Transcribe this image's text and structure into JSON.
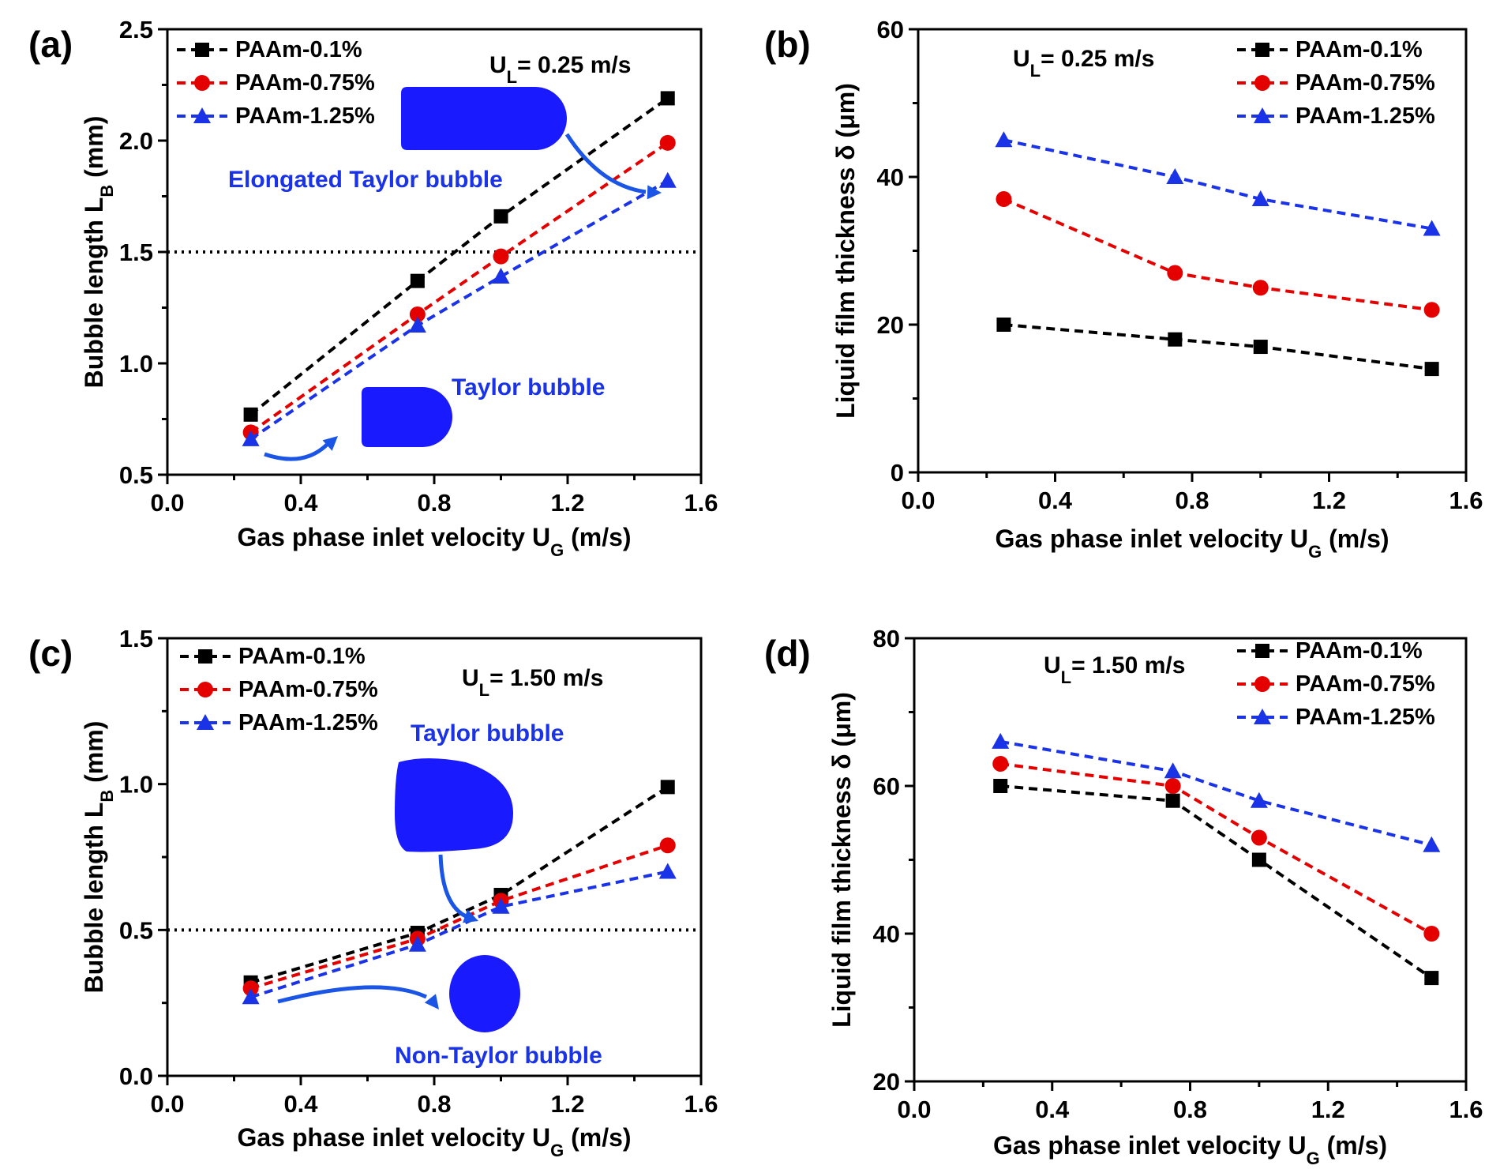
{
  "chart_data": [
    {
      "panel": "(a)",
      "type": "line",
      "condition": {
        "prefix": "U",
        "sub": "L",
        "suffix": "= 0.25 m/s"
      },
      "xlabel": {
        "main": "Gas phase inlet velocity U",
        "sub": "G",
        "suffix": " (m/s)"
      },
      "ylabel": {
        "main": "Bubble length L",
        "sub": "B",
        "suffix": " (mm)"
      },
      "xlim": [
        0.0,
        1.6
      ],
      "ylim": [
        0.5,
        2.5
      ],
      "xticks": [
        "0.0",
        "0.4",
        "0.8",
        "1.2",
        "1.6"
      ],
      "yticks": [
        "0.5",
        "1.0",
        "1.5",
        "2.0",
        "2.5"
      ],
      "x": [
        0.25,
        0.75,
        1.0,
        1.5
      ],
      "series": [
        {
          "name": "PAAm-0.1%",
          "values": [
            0.77,
            1.37,
            1.66,
            2.19
          ],
          "color": "#000000",
          "marker": "square"
        },
        {
          "name": "PAAm-0.75%",
          "values": [
            0.69,
            1.22,
            1.48,
            1.99
          ],
          "color": "#e50000",
          "marker": "circle"
        },
        {
          "name": "PAAm-1.25%",
          "values": [
            0.66,
            1.17,
            1.39,
            1.82
          ],
          "color": "#1a33e6",
          "marker": "triangle"
        }
      ],
      "threshold_line": 1.5,
      "annotations": [
        "Elongated Taylor bubble",
        "Taylor bubble"
      ]
    },
    {
      "panel": "(b)",
      "type": "line",
      "condition": {
        "prefix": "U",
        "sub": "L",
        "suffix": "= 0.25 m/s"
      },
      "xlabel": {
        "main": "Gas phase inlet velocity U",
        "sub": "G",
        "suffix": " (m/s)"
      },
      "ylabel": {
        "main": "Liquid film thickness δ (μm)",
        "sub": "",
        "suffix": ""
      },
      "xlim": [
        0.0,
        1.6
      ],
      "ylim": [
        0,
        60
      ],
      "xticks": [
        "0.0",
        "0.4",
        "0.8",
        "1.2",
        "1.6"
      ],
      "yticks": [
        "0",
        "20",
        "40",
        "60"
      ],
      "x": [
        0.25,
        0.75,
        1.0,
        1.5
      ],
      "series": [
        {
          "name": "PAAm-0.1%",
          "values": [
            20,
            18,
            17,
            14
          ],
          "color": "#000000",
          "marker": "square"
        },
        {
          "name": "PAAm-0.75%",
          "values": [
            37,
            27,
            25,
            22
          ],
          "color": "#e50000",
          "marker": "circle"
        },
        {
          "name": "PAAm-1.25%",
          "values": [
            45,
            40,
            37,
            33
          ],
          "color": "#1a33e6",
          "marker": "triangle"
        }
      ],
      "annotations": []
    },
    {
      "panel": "(c)",
      "type": "line",
      "condition": {
        "prefix": "U",
        "sub": "L",
        "suffix": "= 1.50 m/s"
      },
      "xlabel": {
        "main": "Gas phase inlet velocity U",
        "sub": "G",
        "suffix": " (m/s)"
      },
      "ylabel": {
        "main": "Bubble length L",
        "sub": "B",
        "suffix": " (mm)"
      },
      "xlim": [
        0.0,
        1.6
      ],
      "ylim": [
        0.0,
        1.5
      ],
      "xticks": [
        "0.0",
        "0.4",
        "0.8",
        "1.2",
        "1.6"
      ],
      "yticks": [
        "0.0",
        "0.5",
        "1.0",
        "1.5"
      ],
      "x": [
        0.25,
        0.75,
        1.0,
        1.5
      ],
      "series": [
        {
          "name": "PAAm-0.1%",
          "values": [
            0.32,
            0.49,
            0.62,
            0.99
          ],
          "color": "#000000",
          "marker": "square"
        },
        {
          "name": "PAAm-0.75%",
          "values": [
            0.3,
            0.47,
            0.6,
            0.79
          ],
          "color": "#e50000",
          "marker": "circle"
        },
        {
          "name": "PAAm-1.25%",
          "values": [
            0.27,
            0.45,
            0.58,
            0.7
          ],
          "color": "#1a33e6",
          "marker": "triangle"
        }
      ],
      "threshold_line": 0.5,
      "annotations": [
        "Taylor bubble",
        "Non-Taylor bubble"
      ]
    },
    {
      "panel": "(d)",
      "type": "line",
      "condition": {
        "prefix": "U",
        "sub": "L",
        "suffix": "= 1.50 m/s"
      },
      "xlabel": {
        "main": "Gas phase inlet velocity U",
        "sub": "G",
        "suffix": " (m/s)"
      },
      "ylabel": {
        "main": "Liquid film thickness δ (μm)",
        "sub": "",
        "suffix": ""
      },
      "xlim": [
        0.0,
        1.6
      ],
      "ylim": [
        20,
        80
      ],
      "xticks": [
        "0.0",
        "0.4",
        "0.8",
        "1.2",
        "1.6"
      ],
      "yticks": [
        "20",
        "40",
        "60",
        "80"
      ],
      "x": [
        0.25,
        0.75,
        1.0,
        1.5
      ],
      "series": [
        {
          "name": "PAAm-0.1%",
          "values": [
            60,
            58,
            50,
            34
          ],
          "color": "#000000",
          "marker": "square"
        },
        {
          "name": "PAAm-0.75%",
          "values": [
            63,
            60,
            53,
            40
          ],
          "color": "#e50000",
          "marker": "circle"
        },
        {
          "name": "PAAm-1.25%",
          "values": [
            66,
            62,
            58,
            52
          ],
          "color": "#1a33e6",
          "marker": "triangle"
        }
      ],
      "annotations": []
    }
  ],
  "colors": {
    "bubble": "#1a1aff",
    "arrow": "#1a55e6"
  }
}
